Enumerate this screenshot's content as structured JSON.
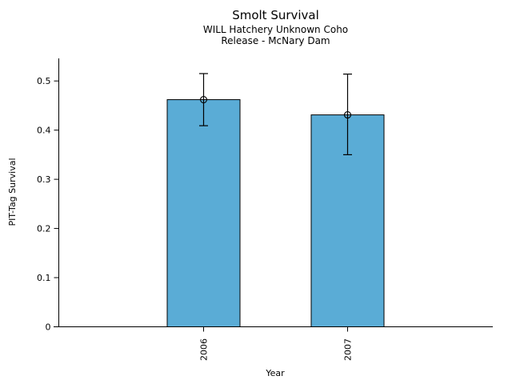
{
  "chart_data": {
    "type": "bar",
    "title": "Smolt Survival",
    "subtitle_line1": "WILL Hatchery Unknown Coho",
    "subtitle_line2": "Release - McNary Dam",
    "xlabel": "Year",
    "ylabel": "PIT-Tag Survival",
    "categories": [
      "2006",
      "2007"
    ],
    "values": [
      0.462,
      0.431
    ],
    "error_low": [
      0.409,
      0.35
    ],
    "error_high": [
      0.515,
      0.514
    ],
    "yticks": [
      0,
      0.1,
      0.2,
      0.3,
      0.4,
      0.5
    ],
    "ytick_labels": [
      "0",
      "0.1",
      "0.2",
      "0.3",
      "0.4",
      "0.5"
    ],
    "ylim": [
      0,
      0.546
    ],
    "grid": false,
    "legend": null,
    "marker": "open-circle",
    "bar_color": "#5AACD6",
    "bar_edge_color": "#000000",
    "error_bar_color": "#000000",
    "axis_color": "#000000"
  }
}
